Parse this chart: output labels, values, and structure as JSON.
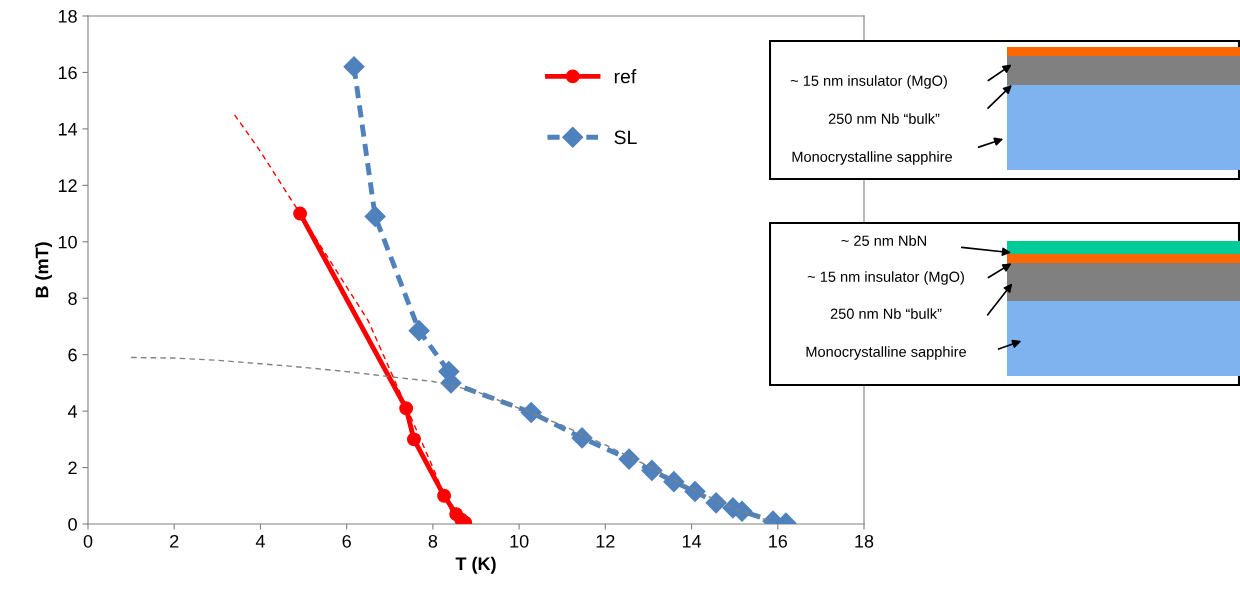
{
  "chart_data": {
    "type": "line",
    "xlabel": "T (K)",
    "ylabel": "B (mT)",
    "xlim": [
      0,
      18
    ],
    "ylim": [
      0,
      18
    ],
    "xticks": [
      0,
      2,
      4,
      6,
      8,
      10,
      12,
      14,
      16,
      18
    ],
    "yticks": [
      0,
      2,
      4,
      6,
      8,
      10,
      12,
      14,
      16,
      18
    ],
    "grid": false,
    "legend": "top",
    "series": [
      {
        "x": [
          3.4,
          4.0,
          4.5,
          4.92,
          5.5,
          6.5,
          7.4,
          8.0,
          8.55
        ],
        "values": [
          14.5,
          13.2,
          12.0,
          11.0,
          9.6,
          7.2,
          4.1,
          2.0,
          0.0
        ],
        "color": "#ff0000",
        "marker": "none",
        "line_style": "dashed"
      },
      {
        "x": [
          1,
          2,
          3,
          4,
          5,
          6,
          7,
          8,
          9,
          10,
          11,
          12,
          13,
          14,
          15,
          15.9
        ],
        "values": [
          5.9,
          5.88,
          5.8,
          5.68,
          5.55,
          5.4,
          5.22,
          5.05,
          4.7,
          4.1,
          3.5,
          2.8,
          2.05,
          1.25,
          0.55,
          0.05
        ],
        "color": "#808080",
        "marker": "none",
        "line_style": "dashed"
      },
      {
        "name": "ref",
        "x": [
          4.92,
          7.38,
          7.56,
          8.26,
          8.54,
          8.66,
          8.75
        ],
        "values": [
          11.0,
          4.1,
          3.0,
          1.0,
          0.35,
          0.15,
          0.05
        ],
        "color": "#ff0000",
        "marker": "circle",
        "line_style": "solid"
      },
      {
        "name": "SL",
        "x": [
          6.17,
          6.66,
          7.68,
          8.37,
          8.42,
          10.28,
          11.46,
          12.55,
          13.08,
          13.59,
          14.08,
          14.57,
          14.96,
          15.17,
          15.89,
          16.19
        ],
        "values": [
          16.2,
          10.9,
          6.85,
          5.4,
          5.0,
          3.95,
          3.05,
          2.3,
          1.9,
          1.5,
          1.15,
          0.75,
          0.57,
          0.45,
          0.1,
          0.03
        ],
        "color": "#4f81bd",
        "marker": "diamond",
        "line_style": "dashed"
      }
    ],
    "annotations": [
      "~ 15 nm insulator (MgO)",
      "250 nm Nb “bulk”",
      "Monocrystalline sapphire",
      "~ 25 nm NbN",
      "~ 15 nm insulator (MgO)",
      "250 nm Nb “bulk”",
      "Monocrystalline sapphire"
    ]
  }
}
